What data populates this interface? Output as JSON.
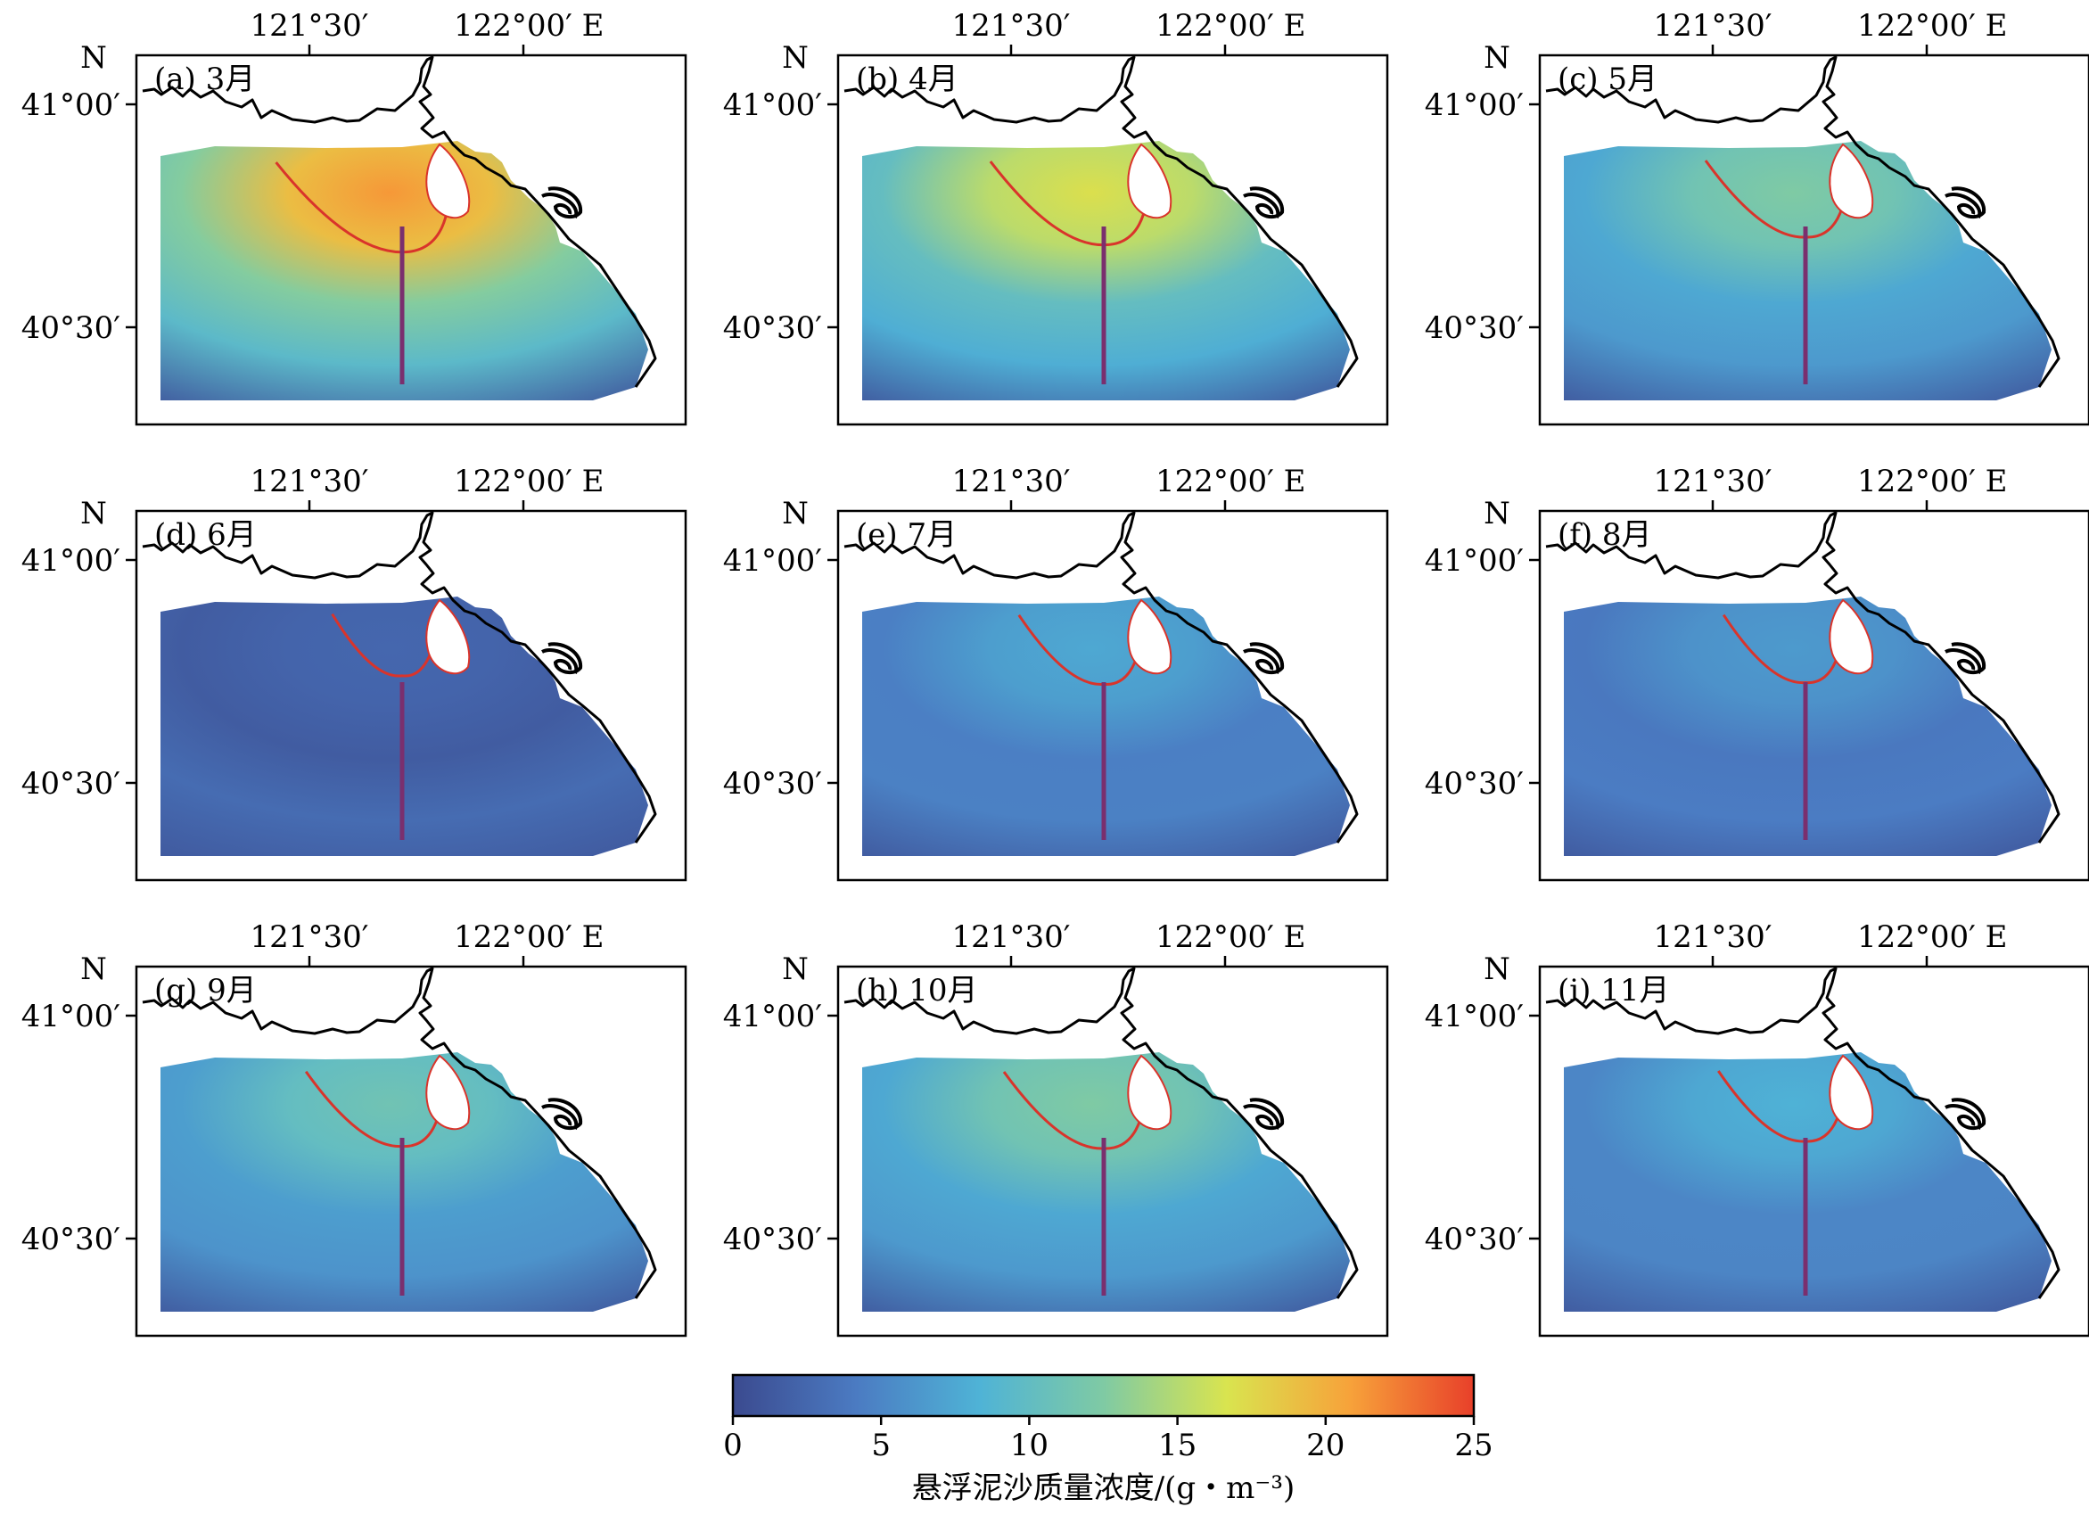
{
  "figure": {
    "lon_ticks": [
      "121°30′",
      "122°00′ E"
    ],
    "lat_ticks": [
      "41°00′",
      "40°30′"
    ],
    "north_label": "N",
    "panels": [
      {
        "label": "(a) 3月",
        "turbidity_level": 0.85
      },
      {
        "label": "(b) 4月",
        "turbidity_level": 0.68
      },
      {
        "label": "(c) 5月",
        "turbidity_level": 0.5
      },
      {
        "label": "(d) 6月",
        "turbidity_level": 0.1
      },
      {
        "label": "(e) 7月",
        "turbidity_level": 0.3
      },
      {
        "label": "(f) 8月",
        "turbidity_level": 0.26
      },
      {
        "label": "(g) 9月",
        "turbidity_level": 0.45
      },
      {
        "label": "(h) 10月",
        "turbidity_level": 0.5
      },
      {
        "label": "(i) 11月",
        "turbidity_level": 0.33
      }
    ],
    "colorbar": {
      "ticks": [
        "0",
        "5",
        "10",
        "15",
        "20",
        "25"
      ],
      "range": [
        0,
        25
      ],
      "title": "悬浮泥沙质量浓度/(g・m⁻³)",
      "colors": [
        "#3b4a8f",
        "#4b7bc2",
        "#4fb3d6",
        "#7fcaa4",
        "#d9e44f",
        "#f7a23a",
        "#e8402a"
      ]
    },
    "colors": {
      "coastline": "#000000",
      "contour": "#d9342b",
      "transect": "#7a2f6e",
      "land": "#ffffff"
    }
  }
}
